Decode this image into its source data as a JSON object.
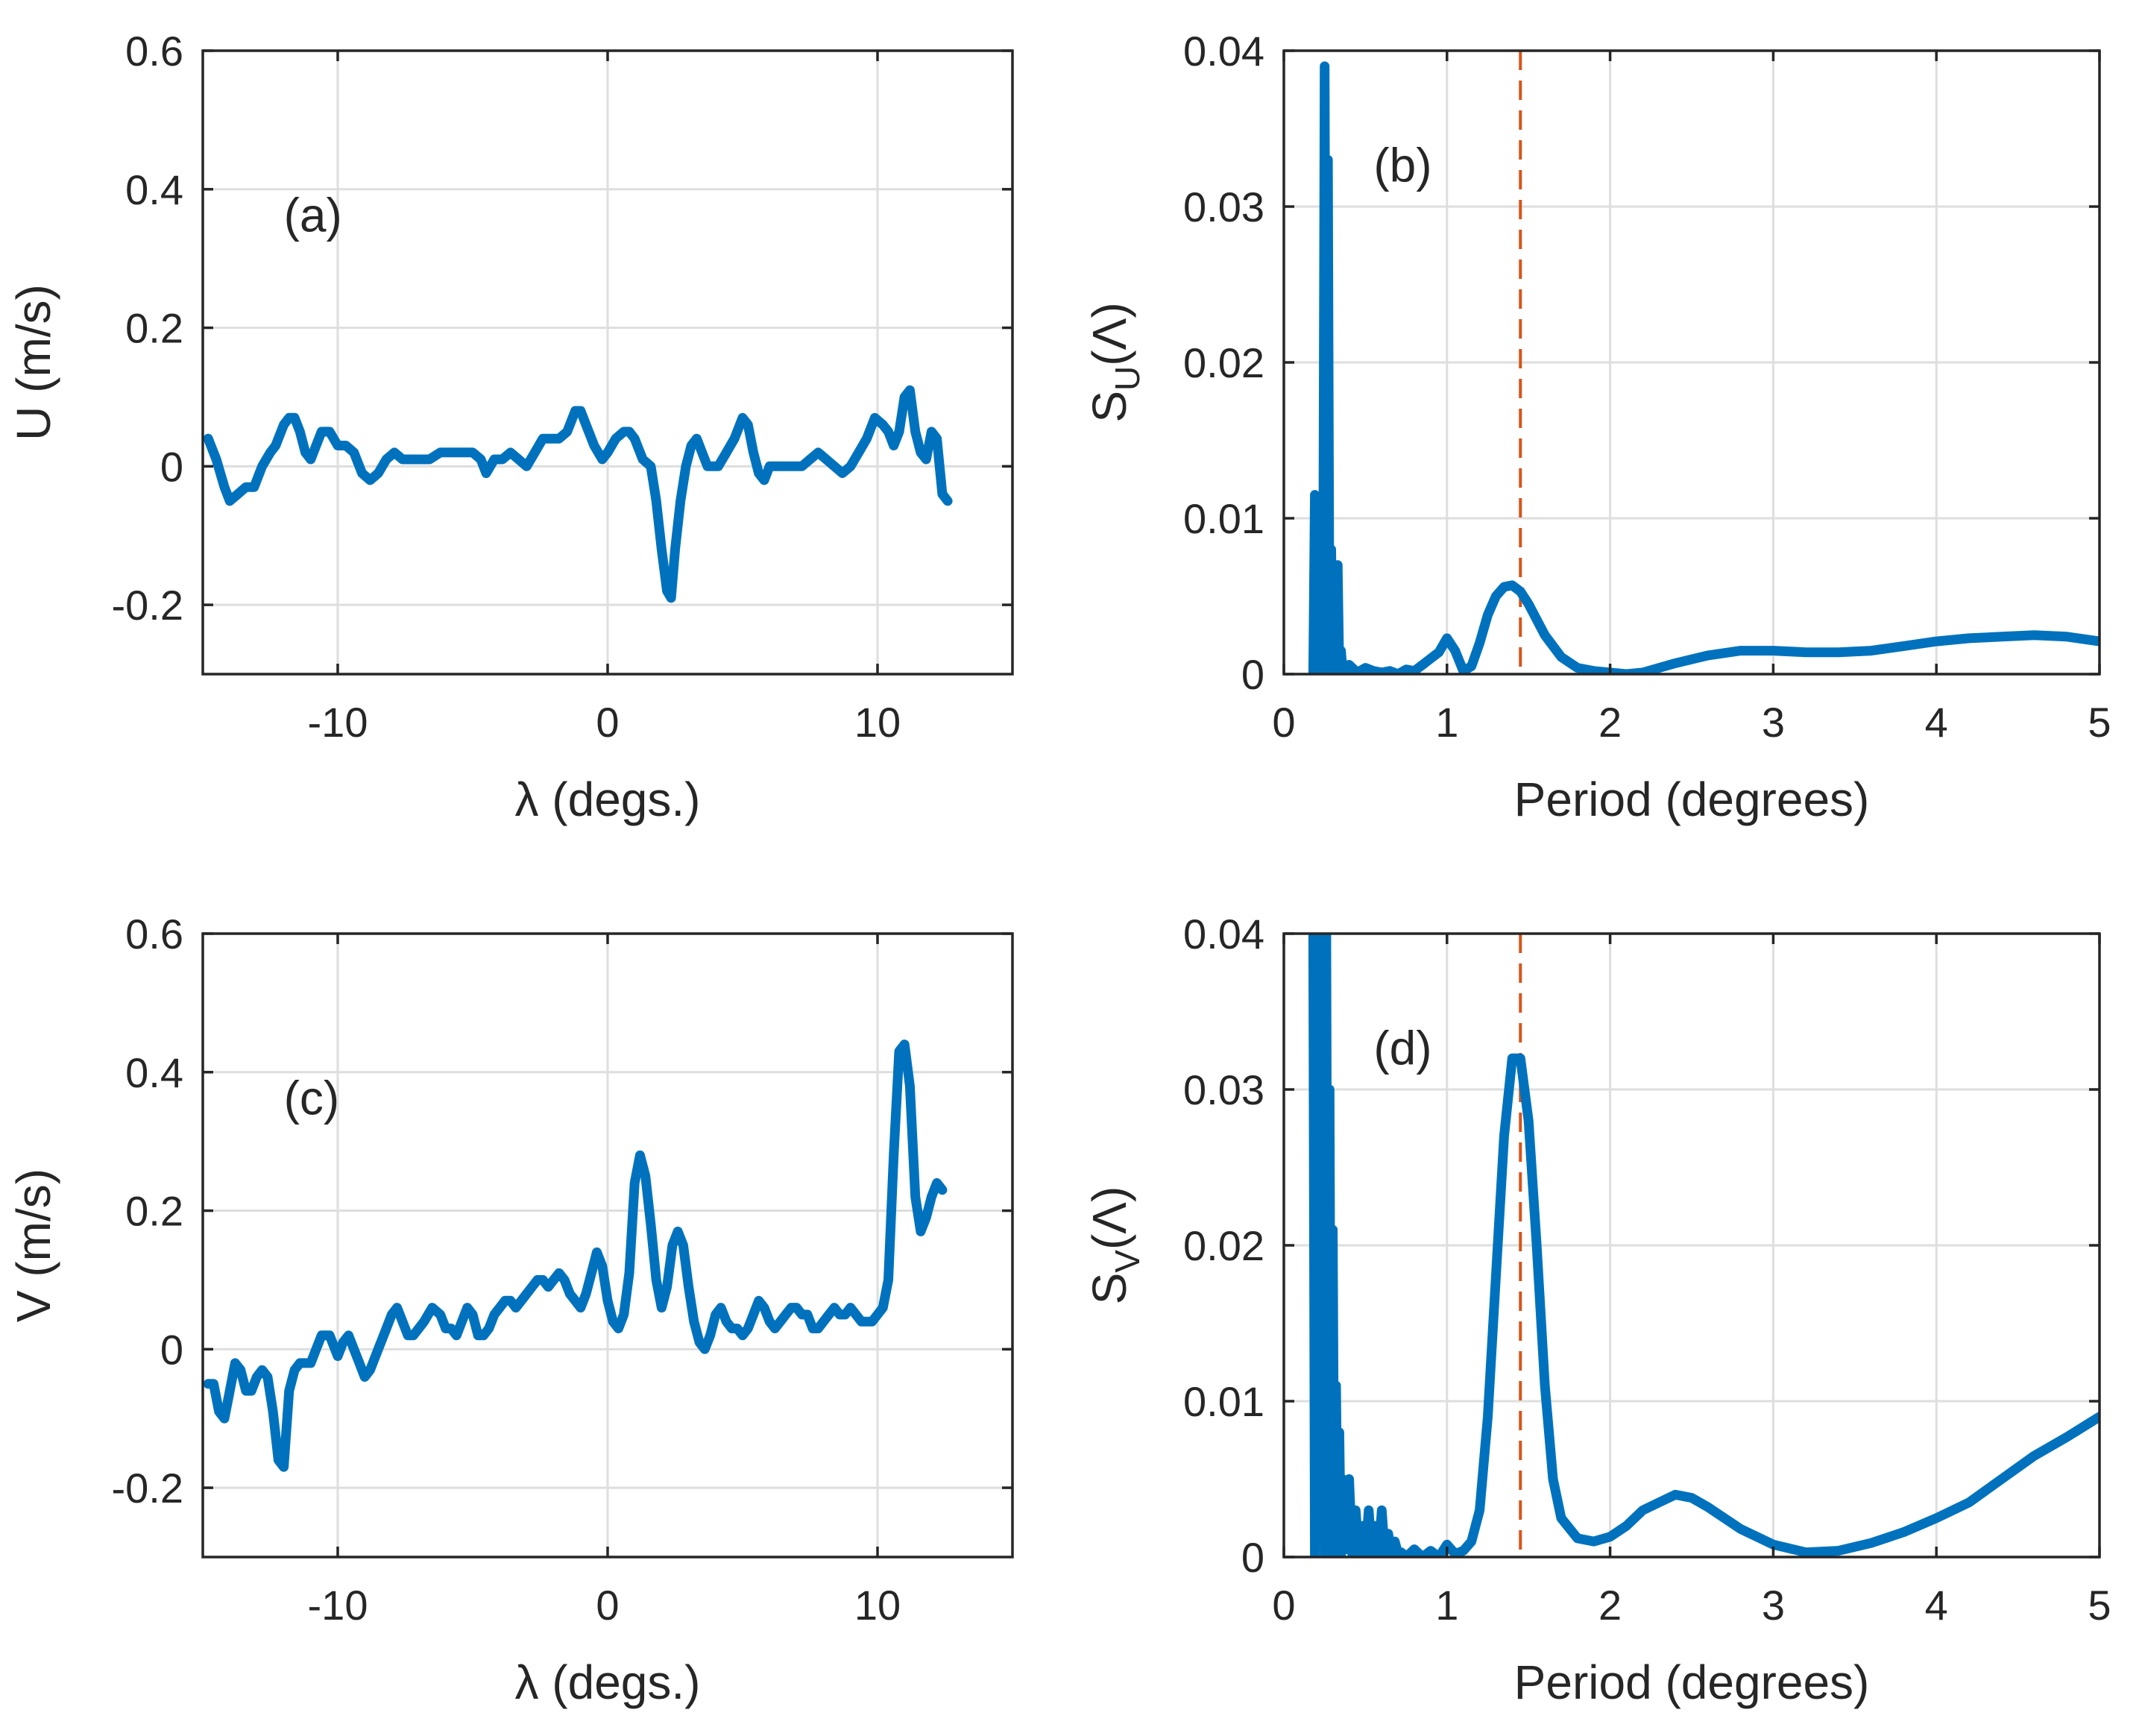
{
  "colors": {
    "series": "#0072BD",
    "reference": "#D95319",
    "axes": "#262626",
    "grid": "#dedede"
  },
  "chart_data": [
    {
      "id": "a",
      "type": "line",
      "panel_label": "(a)",
      "xlabel": "λ (degs.)",
      "ylabel": "U (m/s)",
      "xlim": [
        -15,
        15
      ],
      "ylim": [
        -0.3,
        0.6
      ],
      "xticks": [
        -10,
        0,
        10
      ],
      "xticklabels": [
        "-10",
        "0",
        "10"
      ],
      "yticks": [
        -0.2,
        0,
        0.2,
        0.4,
        0.6
      ],
      "yticklabels": [
        "-0.2",
        "0",
        "0.2",
        "0.4",
        "0.6"
      ],
      "grid": true,
      "series": [
        {
          "name": "U",
          "x": [
            -14.8,
            -14.5,
            -14.2,
            -14.0,
            -13.7,
            -13.4,
            -13.1,
            -12.8,
            -12.5,
            -12.3,
            -12.0,
            -11.8,
            -11.6,
            -11.4,
            -11.2,
            -11.0,
            -10.8,
            -10.6,
            -10.3,
            -10.0,
            -9.7,
            -9.4,
            -9.1,
            -8.8,
            -8.5,
            -8.2,
            -7.9,
            -7.6,
            -7.3,
            -7.0,
            -6.6,
            -6.2,
            -5.8,
            -5.4,
            -5.0,
            -4.7,
            -4.5,
            -4.2,
            -3.9,
            -3.6,
            -3.3,
            -3.0,
            -2.7,
            -2.4,
            -2.1,
            -1.8,
            -1.5,
            -1.2,
            -1.0,
            -0.8,
            -0.5,
            -0.2,
            0.0,
            0.3,
            0.6,
            0.8,
            1.0,
            1.3,
            1.6,
            1.8,
            2.0,
            2.2,
            2.35,
            2.5,
            2.7,
            2.9,
            3.1,
            3.3,
            3.5,
            3.7,
            3.9,
            4.1,
            4.4,
            4.7,
            5.0,
            5.2,
            5.4,
            5.6,
            5.8,
            6.0,
            6.3,
            6.6,
            6.9,
            7.2,
            7.5,
            7.8,
            8.1,
            8.4,
            8.7,
            9.0,
            9.3,
            9.6,
            9.9,
            10.2,
            10.4,
            10.6,
            10.8,
            11.0,
            11.2,
            11.4,
            11.6,
            11.8,
            12.0,
            12.2,
            12.4,
            12.6
          ],
          "y": [
            0.04,
            0.01,
            -0.03,
            -0.05,
            -0.04,
            -0.03,
            -0.03,
            0.0,
            0.02,
            0.03,
            0.06,
            0.07,
            0.07,
            0.05,
            0.02,
            0.01,
            0.03,
            0.05,
            0.05,
            0.03,
            0.03,
            0.02,
            -0.01,
            -0.02,
            -0.01,
            0.01,
            0.02,
            0.01,
            0.01,
            0.01,
            0.01,
            0.02,
            0.02,
            0.02,
            0.02,
            0.01,
            -0.01,
            0.01,
            0.01,
            0.02,
            0.01,
            0.0,
            0.02,
            0.04,
            0.04,
            0.04,
            0.05,
            0.08,
            0.08,
            0.06,
            0.03,
            0.01,
            0.02,
            0.04,
            0.05,
            0.05,
            0.04,
            0.01,
            0.0,
            -0.05,
            -0.12,
            -0.18,
            -0.19,
            -0.12,
            -0.05,
            0.0,
            0.03,
            0.04,
            0.02,
            0.0,
            0.0,
            0.0,
            0.02,
            0.04,
            0.07,
            0.06,
            0.02,
            -0.01,
            -0.02,
            0.0,
            0.0,
            0.0,
            0.0,
            0.0,
            0.01,
            0.02,
            0.01,
            0.0,
            -0.01,
            0.0,
            0.02,
            0.04,
            0.07,
            0.06,
            0.05,
            0.03,
            0.05,
            0.1,
            0.11,
            0.05,
            0.02,
            0.01,
            0.05,
            0.04,
            -0.04,
            -0.05
          ]
        }
      ]
    },
    {
      "id": "b",
      "type": "line",
      "panel_label": "(b)",
      "xlabel": "Period (degrees)",
      "ylabel_main": "S",
      "ylabel_sub": "U",
      "ylabel_tail": "(Λ)",
      "xlim": [
        0,
        5
      ],
      "ylim": [
        0,
        0.04
      ],
      "xticks": [
        0,
        1,
        2,
        3,
        4,
        5
      ],
      "xticklabels": [
        "0",
        "1",
        "2",
        "3",
        "4",
        "5"
      ],
      "yticks": [
        0,
        0.01,
        0.02,
        0.03,
        0.04
      ],
      "yticklabels": [
        "0",
        "0.01",
        "0.02",
        "0.03",
        "0.04"
      ],
      "grid": true,
      "reference_x": 1.45,
      "series": [
        {
          "name": "S_U",
          "x": [
            0.18,
            0.19,
            0.2,
            0.21,
            0.22,
            0.23,
            0.24,
            0.25,
            0.26,
            0.27,
            0.28,
            0.29,
            0.3,
            0.31,
            0.32,
            0.33,
            0.34,
            0.35,
            0.36,
            0.38,
            0.4,
            0.45,
            0.5,
            0.55,
            0.6,
            0.65,
            0.7,
            0.75,
            0.8,
            0.85,
            0.9,
            0.95,
            1.0,
            1.05,
            1.1,
            1.15,
            1.2,
            1.25,
            1.3,
            1.35,
            1.4,
            1.45,
            1.5,
            1.55,
            1.6,
            1.7,
            1.8,
            1.9,
            2.0,
            2.1,
            2.2,
            2.4,
            2.6,
            2.8,
            3.0,
            3.2,
            3.4,
            3.6,
            3.8,
            4.0,
            4.2,
            4.4,
            4.6,
            4.8,
            5.0
          ],
          "y": [
            0.0,
            0.0115,
            0.0,
            0.01,
            0.0,
            0.005,
            0.0,
            0.039,
            0.0,
            0.033,
            0.0,
            0.008,
            0.0,
            0.006,
            0.0,
            0.007,
            0.0,
            0.0015,
            0.0002,
            0.0,
            0.0006,
            0.0001,
            0.0004,
            0.0002,
            0.0001,
            0.0002,
            0.0,
            0.0003,
            0.0002,
            0.0006,
            0.001,
            0.0014,
            0.0023,
            0.0015,
            0.0002,
            0.0005,
            0.002,
            0.0038,
            0.005,
            0.0056,
            0.0057,
            0.0053,
            0.0045,
            0.0035,
            0.0025,
            0.0011,
            0.0004,
            0.0002,
            0.0001,
            0.0,
            0.0001,
            0.0007,
            0.0012,
            0.0015,
            0.0015,
            0.0014,
            0.0014,
            0.0015,
            0.0018,
            0.0021,
            0.0023,
            0.0024,
            0.0025,
            0.0024,
            0.0021
          ]
        }
      ]
    },
    {
      "id": "c",
      "type": "line",
      "panel_label": "(c)",
      "xlabel": "λ (degs.)",
      "ylabel": "V (m/s)",
      "xlim": [
        -15,
        15
      ],
      "ylim": [
        -0.3,
        0.6
      ],
      "xticks": [
        -10,
        0,
        10
      ],
      "xticklabels": [
        "-10",
        "0",
        "10"
      ],
      "yticks": [
        -0.2,
        0,
        0.2,
        0.4,
        0.6
      ],
      "yticklabels": [
        "-0.2",
        "0",
        "0.2",
        "0.4",
        "0.6"
      ],
      "grid": true,
      "series": [
        {
          "name": "V",
          "x": [
            -14.8,
            -14.6,
            -14.4,
            -14.2,
            -14.0,
            -13.8,
            -13.6,
            -13.4,
            -13.2,
            -13.0,
            -12.8,
            -12.6,
            -12.4,
            -12.2,
            -12.0,
            -11.8,
            -11.6,
            -11.4,
            -11.2,
            -11.0,
            -10.8,
            -10.6,
            -10.3,
            -10.0,
            -9.8,
            -9.6,
            -9.4,
            -9.2,
            -9.0,
            -8.8,
            -8.5,
            -8.2,
            -8.0,
            -7.8,
            -7.6,
            -7.4,
            -7.2,
            -7.0,
            -6.8,
            -6.5,
            -6.2,
            -6.0,
            -5.8,
            -5.6,
            -5.4,
            -5.2,
            -5.0,
            -4.8,
            -4.6,
            -4.4,
            -4.2,
            -4.0,
            -3.8,
            -3.6,
            -3.4,
            -3.2,
            -3.0,
            -2.8,
            -2.6,
            -2.4,
            -2.2,
            -2.0,
            -1.8,
            -1.6,
            -1.4,
            -1.2,
            -1.0,
            -0.8,
            -0.6,
            -0.4,
            -0.2,
            0.0,
            0.2,
            0.4,
            0.6,
            0.8,
            1.0,
            1.2,
            1.4,
            1.6,
            1.8,
            2.0,
            2.2,
            2.4,
            2.6,
            2.8,
            3.0,
            3.2,
            3.4,
            3.6,
            3.8,
            4.0,
            4.2,
            4.4,
            4.6,
            4.8,
            5.0,
            5.2,
            5.4,
            5.6,
            5.8,
            6.0,
            6.2,
            6.4,
            6.6,
            6.8,
            7.0,
            7.2,
            7.4,
            7.6,
            7.8,
            8.0,
            8.2,
            8.4,
            8.6,
            8.8,
            9.0,
            9.2,
            9.4,
            9.6,
            9.8,
            10.0,
            10.2,
            10.4,
            10.6,
            10.8,
            11.0,
            11.2,
            11.4,
            11.6,
            11.8,
            12.0,
            12.2,
            12.4
          ],
          "y": [
            -0.05,
            -0.05,
            -0.09,
            -0.1,
            -0.06,
            -0.02,
            -0.03,
            -0.06,
            -0.06,
            -0.04,
            -0.03,
            -0.04,
            -0.09,
            -0.16,
            -0.17,
            -0.06,
            -0.03,
            -0.02,
            -0.02,
            -0.02,
            0.0,
            0.02,
            0.02,
            -0.01,
            0.01,
            0.02,
            0.0,
            -0.02,
            -0.04,
            -0.03,
            0.0,
            0.03,
            0.05,
            0.06,
            0.04,
            0.02,
            0.02,
            0.03,
            0.04,
            0.06,
            0.05,
            0.03,
            0.03,
            0.02,
            0.04,
            0.06,
            0.05,
            0.02,
            0.02,
            0.03,
            0.05,
            0.06,
            0.07,
            0.07,
            0.06,
            0.07,
            0.08,
            0.09,
            0.1,
            0.1,
            0.09,
            0.1,
            0.11,
            0.1,
            0.08,
            0.07,
            0.06,
            0.08,
            0.11,
            0.14,
            0.12,
            0.07,
            0.04,
            0.03,
            0.05,
            0.11,
            0.24,
            0.28,
            0.25,
            0.18,
            0.1,
            0.06,
            0.09,
            0.15,
            0.17,
            0.15,
            0.09,
            0.04,
            0.01,
            0.0,
            0.02,
            0.05,
            0.06,
            0.04,
            0.03,
            0.03,
            0.02,
            0.03,
            0.05,
            0.07,
            0.06,
            0.04,
            0.03,
            0.04,
            0.05,
            0.06,
            0.06,
            0.05,
            0.05,
            0.03,
            0.03,
            0.04,
            0.05,
            0.06,
            0.05,
            0.05,
            0.06,
            0.05,
            0.04,
            0.04,
            0.04,
            0.05,
            0.06,
            0.1,
            0.28,
            0.43,
            0.44,
            0.38,
            0.22,
            0.17,
            0.19,
            0.22,
            0.24,
            0.23
          ]
        }
      ]
    },
    {
      "id": "d",
      "type": "line",
      "panel_label": "(d)",
      "xlabel": "Period (degrees)",
      "ylabel_main": "S",
      "ylabel_sub": "V",
      "ylabel_tail": "(Λ)",
      "xlim": [
        0,
        5
      ],
      "ylim": [
        0,
        0.04
      ],
      "xticks": [
        0,
        1,
        2,
        3,
        4,
        5
      ],
      "xticklabels": [
        "0",
        "1",
        "2",
        "3",
        "4",
        "5"
      ],
      "yticks": [
        0,
        0.01,
        0.02,
        0.03,
        0.04
      ],
      "yticklabels": [
        "0",
        "0.01",
        "0.02",
        "0.03",
        "0.04"
      ],
      "grid": true,
      "reference_x": 1.45,
      "series": [
        {
          "name": "S_V",
          "x": [
            0.18,
            0.19,
            0.2,
            0.21,
            0.22,
            0.23,
            0.24,
            0.25,
            0.26,
            0.27,
            0.28,
            0.29,
            0.3,
            0.31,
            0.32,
            0.33,
            0.34,
            0.35,
            0.36,
            0.38,
            0.4,
            0.42,
            0.44,
            0.46,
            0.48,
            0.5,
            0.52,
            0.54,
            0.56,
            0.58,
            0.6,
            0.62,
            0.64,
            0.66,
            0.68,
            0.7,
            0.72,
            0.75,
            0.8,
            0.85,
            0.9,
            0.95,
            1.0,
            1.05,
            1.1,
            1.15,
            1.2,
            1.25,
            1.3,
            1.35,
            1.4,
            1.45,
            1.5,
            1.55,
            1.6,
            1.65,
            1.7,
            1.8,
            1.9,
            2.0,
            2.1,
            2.2,
            2.3,
            2.4,
            2.5,
            2.6,
            2.8,
            3.0,
            3.2,
            3.4,
            3.6,
            3.8,
            4.0,
            4.2,
            4.4,
            4.6,
            4.8,
            5.0
          ],
          "y": [
            0.04,
            0.0,
            0.04,
            0.002,
            0.04,
            0.001,
            0.031,
            0.0,
            0.04,
            0.0,
            0.03,
            0.0,
            0.021,
            0.0,
            0.011,
            0.001,
            0.008,
            0.0,
            0.005,
            0.0005,
            0.005,
            0.0,
            0.003,
            0.0,
            0.002,
            0.0,
            0.003,
            0.0,
            0.002,
            0.0,
            0.003,
            0.0,
            0.0015,
            0.0,
            0.001,
            0.0002,
            0.0003,
            0.0,
            0.0005,
            0.0,
            0.0004,
            0.0,
            0.0008,
            0.0002,
            0.0004,
            0.001,
            0.003,
            0.009,
            0.018,
            0.027,
            0.032,
            0.032,
            0.028,
            0.02,
            0.011,
            0.005,
            0.0025,
            0.0012,
            0.001,
            0.0013,
            0.002,
            0.003,
            0.0035,
            0.004,
            0.0038,
            0.0032,
            0.0018,
            0.0008,
            0.0003,
            0.0004,
            0.0009,
            0.0016,
            0.0025,
            0.0035,
            0.005,
            0.0065,
            0.0077,
            0.009
          ]
        }
      ]
    }
  ]
}
